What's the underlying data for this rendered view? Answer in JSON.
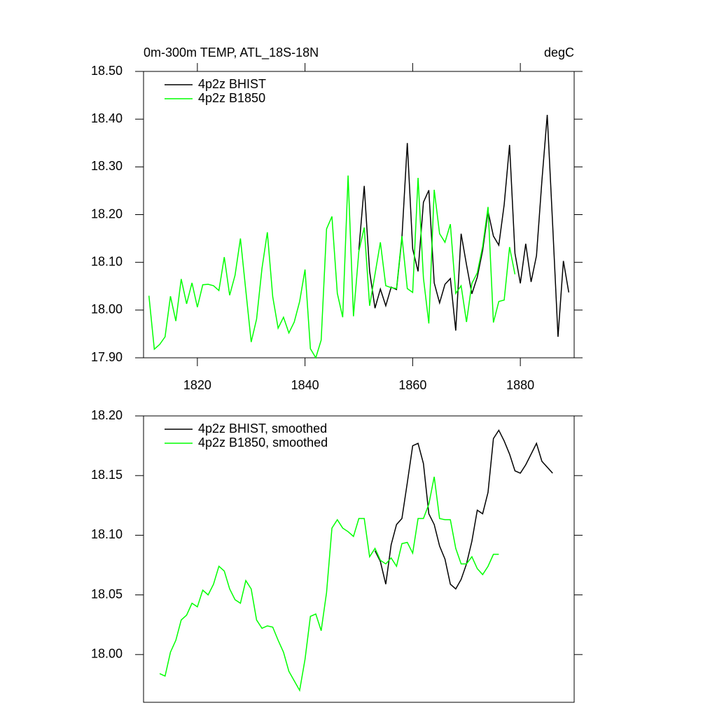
{
  "chart_data": [
    {
      "type": "line",
      "title": "0m-300m TEMP, ATL_18S-18N",
      "units": "degC",
      "xlim": [
        1810,
        1890
      ],
      "xticks": [
        1820,
        1840,
        1860,
        1880
      ],
      "ylim": [
        17.9,
        18.5
      ],
      "yticks": [
        {
          "value": 17.9,
          "label": "17.90"
        },
        {
          "value": 18.0,
          "label": "18.00"
        },
        {
          "value": 18.1,
          "label": "18.10"
        },
        {
          "value": 18.2,
          "label": "18.20"
        },
        {
          "value": 18.3,
          "label": "18.30"
        },
        {
          "value": 18.4,
          "label": "18.40"
        },
        {
          "value": 18.5,
          "label": "18.50"
        }
      ],
      "legend": "upper left",
      "series": [
        {
          "name": "4p2z BHIST",
          "color": "#000000",
          "x": [
            1850,
            1851,
            1852,
            1853,
            1854,
            1855,
            1856,
            1857,
            1858,
            1859,
            1860,
            1861,
            1862,
            1863,
            1864,
            1865,
            1866,
            1867,
            1868,
            1869,
            1870,
            1871,
            1872,
            1873,
            1874,
            1875,
            1876,
            1877,
            1878,
            1879,
            1880,
            1881,
            1882,
            1883,
            1884,
            1885,
            1886,
            1887,
            1888,
            1889
          ],
          "values": [
            18.126,
            18.26,
            18.081,
            18.004,
            18.044,
            18.009,
            18.048,
            18.043,
            18.151,
            18.35,
            18.128,
            18.081,
            18.226,
            18.251,
            18.057,
            18.015,
            18.054,
            18.066,
            17.957,
            18.16,
            18.095,
            18.034,
            18.069,
            18.125,
            18.207,
            18.155,
            18.136,
            18.221,
            18.346,
            18.119,
            18.056,
            18.139,
            18.059,
            18.114,
            18.27,
            18.409,
            18.18,
            17.944,
            18.103,
            18.037
          ]
        },
        {
          "name": "4p2z B1850",
          "color": "#00ff00",
          "x": [
            1811,
            1812,
            1813,
            1814,
            1815,
            1816,
            1817,
            1818,
            1819,
            1820,
            1821,
            1822,
            1823,
            1824,
            1825,
            1826,
            1827,
            1828,
            1829,
            1830,
            1831,
            1832,
            1833,
            1834,
            1835,
            1836,
            1837,
            1838,
            1839,
            1840,
            1841,
            1842,
            1843,
            1844,
            1845,
            1846,
            1847,
            1848,
            1849,
            1850,
            1851,
            1852,
            1853,
            1854,
            1855,
            1856,
            1857,
            1858,
            1859,
            1860,
            1861,
            1862,
            1863,
            1864,
            1865,
            1866,
            1867,
            1868,
            1869,
            1870,
            1871,
            1872,
            1873,
            1874,
            1875,
            1876,
            1877,
            1878,
            1879
          ],
          "values": [
            18.03,
            17.918,
            17.928,
            17.944,
            18.029,
            17.977,
            18.065,
            18.013,
            18.057,
            18.006,
            18.053,
            18.054,
            18.051,
            18.041,
            18.111,
            18.031,
            18.073,
            18.15,
            18.041,
            17.933,
            17.981,
            18.087,
            18.163,
            18.028,
            17.962,
            17.985,
            17.952,
            17.975,
            18.018,
            18.085,
            17.919,
            17.9,
            17.937,
            18.17,
            18.196,
            18.035,
            17.985,
            18.282,
            17.987,
            18.123,
            18.173,
            18.009,
            18.075,
            18.142,
            18.051,
            18.047,
            18.045,
            18.155,
            18.045,
            18.037,
            18.277,
            18.067,
            17.972,
            18.252,
            18.16,
            18.142,
            18.18,
            18.035,
            18.051,
            17.975,
            18.056,
            18.078,
            18.133,
            18.216,
            17.974,
            18.018,
            18.021,
            18.132,
            18.075
          ]
        }
      ]
    },
    {
      "type": "line",
      "xlim": [
        1810,
        1890
      ],
      "ylim": [
        17.96,
        18.2
      ],
      "yticks": [
        {
          "value": 18.0,
          "label": "18.00"
        },
        18.05,
        {
          "value": 18.1,
          "label": "18.10"
        },
        18.15,
        {
          "value": 18.2,
          "label": "18.20"
        }
      ],
      "legend": "upper left",
      "series": [
        {
          "name": "4p2z BHIST, smoothed",
          "color": "#000000",
          "x": [
            1853,
            1854,
            1855,
            1856,
            1857,
            1858,
            1859,
            1860,
            1861,
            1862,
            1863,
            1864,
            1865,
            1866,
            1867,
            1868,
            1869,
            1870,
            1871,
            1872,
            1873,
            1874,
            1875,
            1876,
            1877,
            1878,
            1879,
            1880,
            1881,
            1882,
            1883,
            1884,
            1885,
            1886
          ],
          "values": [
            18.087,
            18.078,
            18.059,
            18.092,
            18.109,
            18.114,
            18.144,
            18.175,
            18.177,
            18.16,
            18.118,
            18.109,
            18.091,
            18.08,
            18.059,
            18.055,
            18.063,
            18.076,
            18.095,
            18.121,
            18.118,
            18.136,
            18.181,
            18.188,
            18.179,
            18.168,
            18.154,
            18.152,
            18.159,
            18.168,
            18.177,
            18.162,
            18.157,
            18.152
          ]
        },
        {
          "name": "4p2z B1850, smoothed",
          "color": "#00ff00",
          "x": [
            1813,
            1814,
            1815,
            1816,
            1817,
            1818,
            1819,
            1820,
            1821,
            1822,
            1823,
            1824,
            1825,
            1826,
            1827,
            1828,
            1829,
            1830,
            1831,
            1832,
            1833,
            1834,
            1835,
            1836,
            1837,
            1838,
            1839,
            1840,
            1841,
            1842,
            1843,
            1844,
            1845,
            1846,
            1847,
            1848,
            1849,
            1850,
            1851,
            1852,
            1853,
            1854,
            1855,
            1856,
            1857,
            1858,
            1859,
            1860,
            1861,
            1862,
            1863,
            1864,
            1865,
            1866,
            1867,
            1868,
            1869,
            1870,
            1871,
            1872,
            1873,
            1874,
            1875,
            1876
          ],
          "values": [
            17.984,
            17.982,
            18.002,
            18.012,
            18.029,
            18.033,
            18.043,
            18.04,
            18.054,
            18.05,
            18.059,
            18.074,
            18.07,
            18.055,
            18.046,
            18.043,
            18.062,
            18.055,
            18.029,
            18.022,
            18.024,
            18.023,
            18.012,
            18.002,
            17.986,
            17.978,
            17.97,
            17.996,
            18.032,
            18.034,
            18.02,
            18.052,
            18.106,
            18.113,
            18.106,
            18.103,
            18.099,
            18.114,
            18.114,
            18.082,
            18.089,
            18.079,
            18.076,
            18.081,
            18.074,
            18.093,
            18.094,
            18.085,
            18.114,
            18.114,
            18.126,
            18.149,
            18.114,
            18.113,
            18.113,
            18.089,
            18.076,
            18.076,
            18.082,
            18.072,
            18.067,
            18.074,
            18.084,
            18.084
          ]
        }
      ]
    }
  ]
}
